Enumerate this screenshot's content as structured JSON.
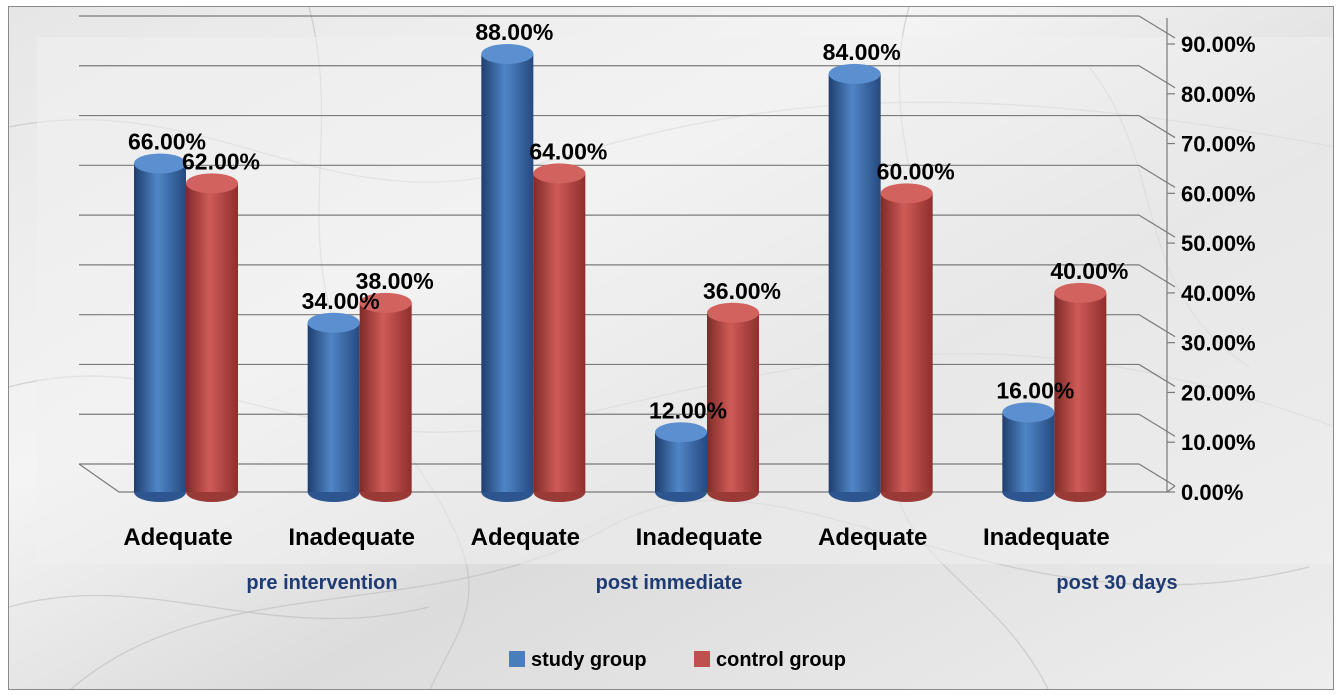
{
  "chart_data": {
    "type": "bar",
    "categories": [
      "Adequate",
      "Inadequate",
      "Adequate",
      "Inadequate",
      "Adequate",
      "Inadequate"
    ],
    "groups": [
      "pre intervention",
      "post immediate",
      "post 30 days"
    ],
    "series": [
      {
        "name": "study group",
        "values": [
          66,
          34,
          88,
          12,
          84,
          16
        ],
        "labels": [
          "66.00%",
          "34.00%",
          "88.00%",
          "12.00%",
          "84.00%",
          "16.00%"
        ],
        "color": "#4a7ebb"
      },
      {
        "name": "control group",
        "values": [
          62,
          38,
          64,
          36,
          60,
          40
        ],
        "labels": [
          "62.00%",
          "38.00%",
          "64.00%",
          "36.00%",
          "60.00%",
          "40.00%"
        ],
        "color": "#c0504d"
      }
    ],
    "y_ticks": [
      "0.00%",
      "10.00%",
      "20.00%",
      "30.00%",
      "40.00%",
      "50.00%",
      "60.00%",
      "70.00%",
      "80.00%",
      "90.00%"
    ],
    "ylim": [
      0,
      90
    ],
    "y_axis_position": "right",
    "grid": true,
    "legend_position": "bottom"
  }
}
